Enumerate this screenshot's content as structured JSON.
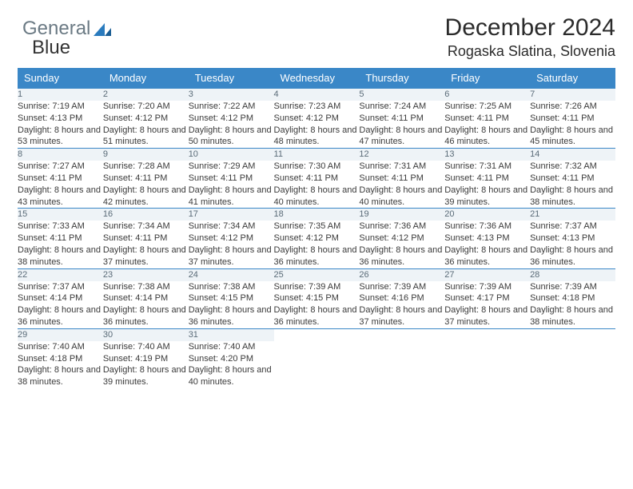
{
  "logo": {
    "part1": "General",
    "part2": "Blue"
  },
  "header": {
    "title": "December 2024",
    "location": "Rogaska Slatina, Slovenia"
  },
  "colors": {
    "header_bg": "#3a87c7",
    "header_text": "#ffffff",
    "daynum_bg": "#eef3f7",
    "rule": "#3a87c7"
  },
  "weekdays": [
    "Sunday",
    "Monday",
    "Tuesday",
    "Wednesday",
    "Thursday",
    "Friday",
    "Saturday"
  ],
  "weeks": [
    [
      {
        "n": "1",
        "sr": "Sunrise: 7:19 AM",
        "ss": "Sunset: 4:13 PM",
        "dl": "Daylight: 8 hours and 53 minutes."
      },
      {
        "n": "2",
        "sr": "Sunrise: 7:20 AM",
        "ss": "Sunset: 4:12 PM",
        "dl": "Daylight: 8 hours and 51 minutes."
      },
      {
        "n": "3",
        "sr": "Sunrise: 7:22 AM",
        "ss": "Sunset: 4:12 PM",
        "dl": "Daylight: 8 hours and 50 minutes."
      },
      {
        "n": "4",
        "sr": "Sunrise: 7:23 AM",
        "ss": "Sunset: 4:12 PM",
        "dl": "Daylight: 8 hours and 48 minutes."
      },
      {
        "n": "5",
        "sr": "Sunrise: 7:24 AM",
        "ss": "Sunset: 4:11 PM",
        "dl": "Daylight: 8 hours and 47 minutes."
      },
      {
        "n": "6",
        "sr": "Sunrise: 7:25 AM",
        "ss": "Sunset: 4:11 PM",
        "dl": "Daylight: 8 hours and 46 minutes."
      },
      {
        "n": "7",
        "sr": "Sunrise: 7:26 AM",
        "ss": "Sunset: 4:11 PM",
        "dl": "Daylight: 8 hours and 45 minutes."
      }
    ],
    [
      {
        "n": "8",
        "sr": "Sunrise: 7:27 AM",
        "ss": "Sunset: 4:11 PM",
        "dl": "Daylight: 8 hours and 43 minutes."
      },
      {
        "n": "9",
        "sr": "Sunrise: 7:28 AM",
        "ss": "Sunset: 4:11 PM",
        "dl": "Daylight: 8 hours and 42 minutes."
      },
      {
        "n": "10",
        "sr": "Sunrise: 7:29 AM",
        "ss": "Sunset: 4:11 PM",
        "dl": "Daylight: 8 hours and 41 minutes."
      },
      {
        "n": "11",
        "sr": "Sunrise: 7:30 AM",
        "ss": "Sunset: 4:11 PM",
        "dl": "Daylight: 8 hours and 40 minutes."
      },
      {
        "n": "12",
        "sr": "Sunrise: 7:31 AM",
        "ss": "Sunset: 4:11 PM",
        "dl": "Daylight: 8 hours and 40 minutes."
      },
      {
        "n": "13",
        "sr": "Sunrise: 7:31 AM",
        "ss": "Sunset: 4:11 PM",
        "dl": "Daylight: 8 hours and 39 minutes."
      },
      {
        "n": "14",
        "sr": "Sunrise: 7:32 AM",
        "ss": "Sunset: 4:11 PM",
        "dl": "Daylight: 8 hours and 38 minutes."
      }
    ],
    [
      {
        "n": "15",
        "sr": "Sunrise: 7:33 AM",
        "ss": "Sunset: 4:11 PM",
        "dl": "Daylight: 8 hours and 38 minutes."
      },
      {
        "n": "16",
        "sr": "Sunrise: 7:34 AM",
        "ss": "Sunset: 4:11 PM",
        "dl": "Daylight: 8 hours and 37 minutes."
      },
      {
        "n": "17",
        "sr": "Sunrise: 7:34 AM",
        "ss": "Sunset: 4:12 PM",
        "dl": "Daylight: 8 hours and 37 minutes."
      },
      {
        "n": "18",
        "sr": "Sunrise: 7:35 AM",
        "ss": "Sunset: 4:12 PM",
        "dl": "Daylight: 8 hours and 36 minutes."
      },
      {
        "n": "19",
        "sr": "Sunrise: 7:36 AM",
        "ss": "Sunset: 4:12 PM",
        "dl": "Daylight: 8 hours and 36 minutes."
      },
      {
        "n": "20",
        "sr": "Sunrise: 7:36 AM",
        "ss": "Sunset: 4:13 PM",
        "dl": "Daylight: 8 hours and 36 minutes."
      },
      {
        "n": "21",
        "sr": "Sunrise: 7:37 AM",
        "ss": "Sunset: 4:13 PM",
        "dl": "Daylight: 8 hours and 36 minutes."
      }
    ],
    [
      {
        "n": "22",
        "sr": "Sunrise: 7:37 AM",
        "ss": "Sunset: 4:14 PM",
        "dl": "Daylight: 8 hours and 36 minutes."
      },
      {
        "n": "23",
        "sr": "Sunrise: 7:38 AM",
        "ss": "Sunset: 4:14 PM",
        "dl": "Daylight: 8 hours and 36 minutes."
      },
      {
        "n": "24",
        "sr": "Sunrise: 7:38 AM",
        "ss": "Sunset: 4:15 PM",
        "dl": "Daylight: 8 hours and 36 minutes."
      },
      {
        "n": "25",
        "sr": "Sunrise: 7:39 AM",
        "ss": "Sunset: 4:15 PM",
        "dl": "Daylight: 8 hours and 36 minutes."
      },
      {
        "n": "26",
        "sr": "Sunrise: 7:39 AM",
        "ss": "Sunset: 4:16 PM",
        "dl": "Daylight: 8 hours and 37 minutes."
      },
      {
        "n": "27",
        "sr": "Sunrise: 7:39 AM",
        "ss": "Sunset: 4:17 PM",
        "dl": "Daylight: 8 hours and 37 minutes."
      },
      {
        "n": "28",
        "sr": "Sunrise: 7:39 AM",
        "ss": "Sunset: 4:18 PM",
        "dl": "Daylight: 8 hours and 38 minutes."
      }
    ],
    [
      {
        "n": "29",
        "sr": "Sunrise: 7:40 AM",
        "ss": "Sunset: 4:18 PM",
        "dl": "Daylight: 8 hours and 38 minutes."
      },
      {
        "n": "30",
        "sr": "Sunrise: 7:40 AM",
        "ss": "Sunset: 4:19 PM",
        "dl": "Daylight: 8 hours and 39 minutes."
      },
      {
        "n": "31",
        "sr": "Sunrise: 7:40 AM",
        "ss": "Sunset: 4:20 PM",
        "dl": "Daylight: 8 hours and 40 minutes."
      },
      null,
      null,
      null,
      null
    ]
  ]
}
